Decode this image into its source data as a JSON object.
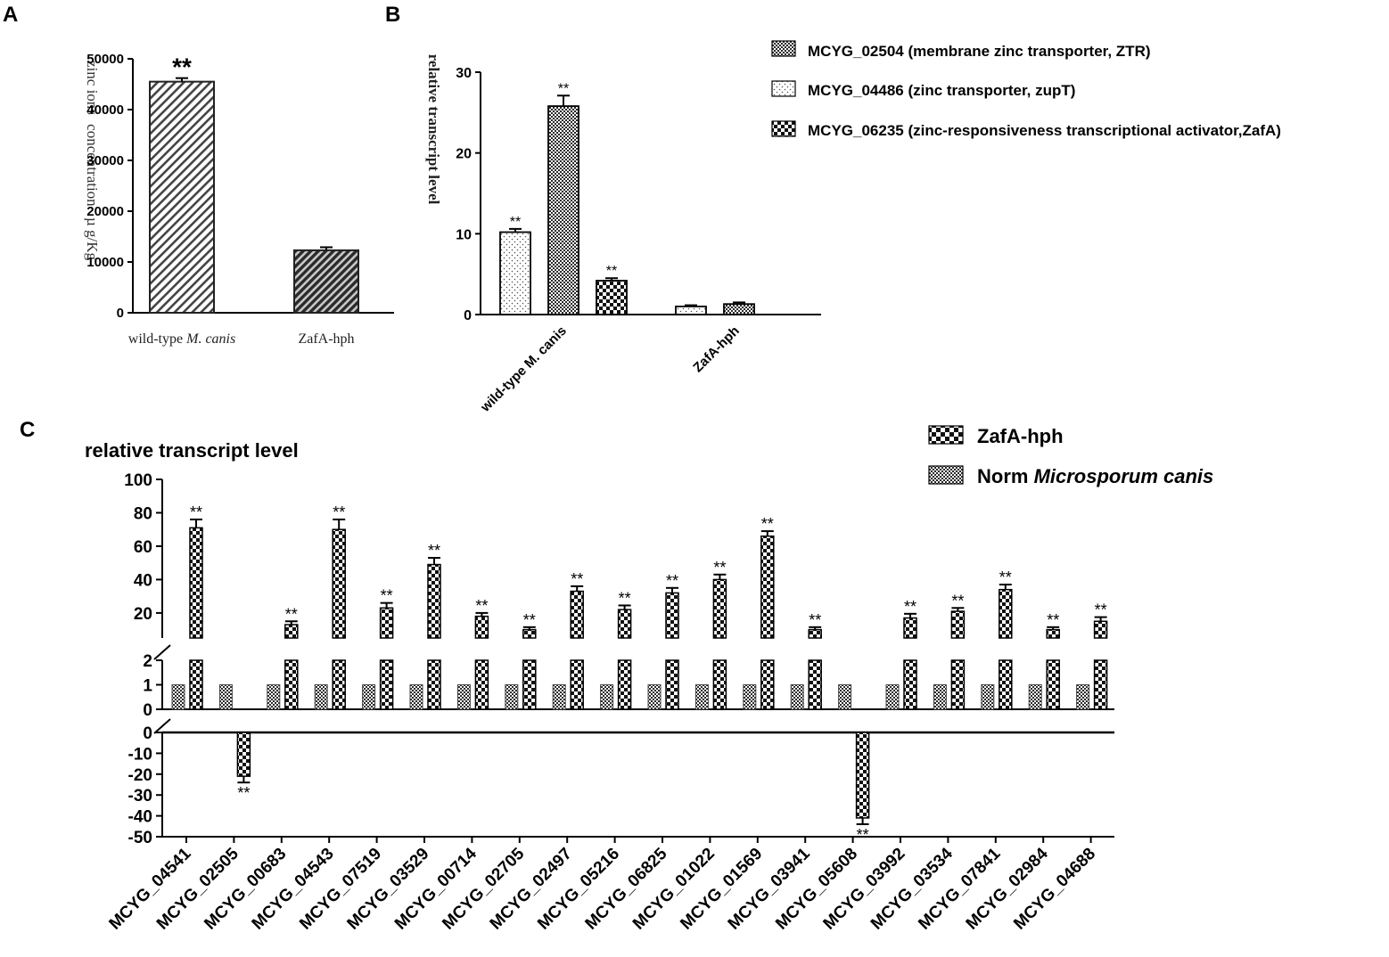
{
  "panels": {
    "a": "A",
    "b": "B",
    "c": "C"
  },
  "chart_data": [
    {
      "panel": "A",
      "type": "bar",
      "ylabel_parts": [
        "zinc ions",
        "concentration",
        "µ",
        "g/Kg"
      ],
      "ylim": [
        0,
        50000
      ],
      "yticks": [
        0,
        10000,
        20000,
        30000,
        40000,
        50000
      ],
      "ytick_labels": [
        "0",
        "10000",
        "20000",
        "30000",
        "40000",
        "50000"
      ],
      "categories": [
        {
          "prefix": "wild-type ",
          "italic": "M. canis",
          "value": 45500,
          "error": 700,
          "sig": "**"
        },
        {
          "prefix": "ZafA-hph",
          "italic": "",
          "value": 12300,
          "error": 600,
          "sig": ""
        }
      ]
    },
    {
      "panel": "B",
      "type": "bar",
      "ylabel": "relative transcript level",
      "ylim": [
        0,
        30
      ],
      "yticks": [
        0,
        10,
        20,
        30
      ],
      "ytick_labels": [
        "0",
        "10",
        "20",
        "30"
      ],
      "categories": [
        "wild-type M. canis",
        "ZafA-hph"
      ],
      "legend": [
        "MCYG_02504 (membrane zinc transporter, ZTR)",
        "MCYG_04486 (zinc transporter, zupT)",
        "MCYG_06235 (zinc-responsiveness transcriptional activator,ZafA)"
      ],
      "series": [
        {
          "name": "MCYG_04486 (zinc transporter, zupT)",
          "values": [
            10.2,
            1.0
          ],
          "errors": [
            0.4,
            0.15
          ],
          "sig": [
            "**",
            ""
          ]
        },
        {
          "name": "MCYG_02504 (membrane zinc transporter, ZTR)",
          "values": [
            25.8,
            1.3
          ],
          "errors": [
            1.3,
            0.2
          ],
          "sig": [
            "**",
            ""
          ]
        },
        {
          "name": "MCYG_06235 (zinc-responsiveness transcriptional activator,ZafA)",
          "values": [
            4.2,
            null
          ],
          "errors": [
            0.3,
            null
          ],
          "sig": [
            "**",
            ""
          ]
        }
      ]
    },
    {
      "panel": "C",
      "type": "bar",
      "title": "relative transcript level",
      "legend": {
        "zafa": "ZafA-hph",
        "norm_prefix": "Norm ",
        "norm_italic": "Microsporum canis"
      },
      "y_segments": {
        "upper": {
          "range": [
            5,
            100
          ],
          "ticks": [
            20,
            40,
            60,
            80,
            100
          ]
        },
        "middle": {
          "range": [
            0,
            2
          ],
          "ticks": [
            0,
            1,
            2
          ]
        },
        "lower": {
          "range": [
            -50,
            0
          ],
          "ticks": [
            0,
            -10,
            -20,
            -30,
            -40,
            -50
          ]
        }
      },
      "categories": [
        "MCYG_04541",
        "MCYG_02505",
        "MCYG_00683",
        "MCYG_04543",
        "MCYG_07519",
        "MCYG_03529",
        "MCYG_00714",
        "MCYG_02705",
        "MCYG_02497",
        "MCYG_05216",
        "MCYG_06825",
        "MCYG_01022",
        "MCYG_01569",
        "MCYG_03941",
        "MCYG_05608",
        "MCYG_03992",
        "MCYG_03534",
        "MCYG_07841",
        "MCYG_02984",
        "MCYG_04688"
      ],
      "series": [
        {
          "name": "Norm Microsporum canis",
          "values": [
            1,
            1,
            1,
            1,
            1,
            1,
            1,
            1,
            1,
            1,
            1,
            1,
            1,
            1,
            1,
            1,
            1,
            1,
            1,
            1
          ]
        },
        {
          "name": "ZafA-hph",
          "values": [
            71,
            -21,
            13,
            70,
            23,
            49,
            18,
            10,
            33,
            22,
            32,
            40,
            66,
            10,
            -41,
            17,
            21,
            34,
            10,
            15
          ],
          "errors": [
            5,
            3,
            2,
            6,
            3,
            4,
            2,
            1.5,
            3,
            2.5,
            3,
            3,
            3,
            1.5,
            3,
            2.5,
            2,
            3,
            1.5,
            2.5
          ],
          "sig": [
            "**",
            "**",
            "**",
            "**",
            "**",
            "**",
            "**",
            "**",
            "**",
            "**",
            "**",
            "**",
            "**",
            "**",
            "**",
            "**",
            "**",
            "**",
            "**",
            "**"
          ]
        }
      ]
    }
  ]
}
